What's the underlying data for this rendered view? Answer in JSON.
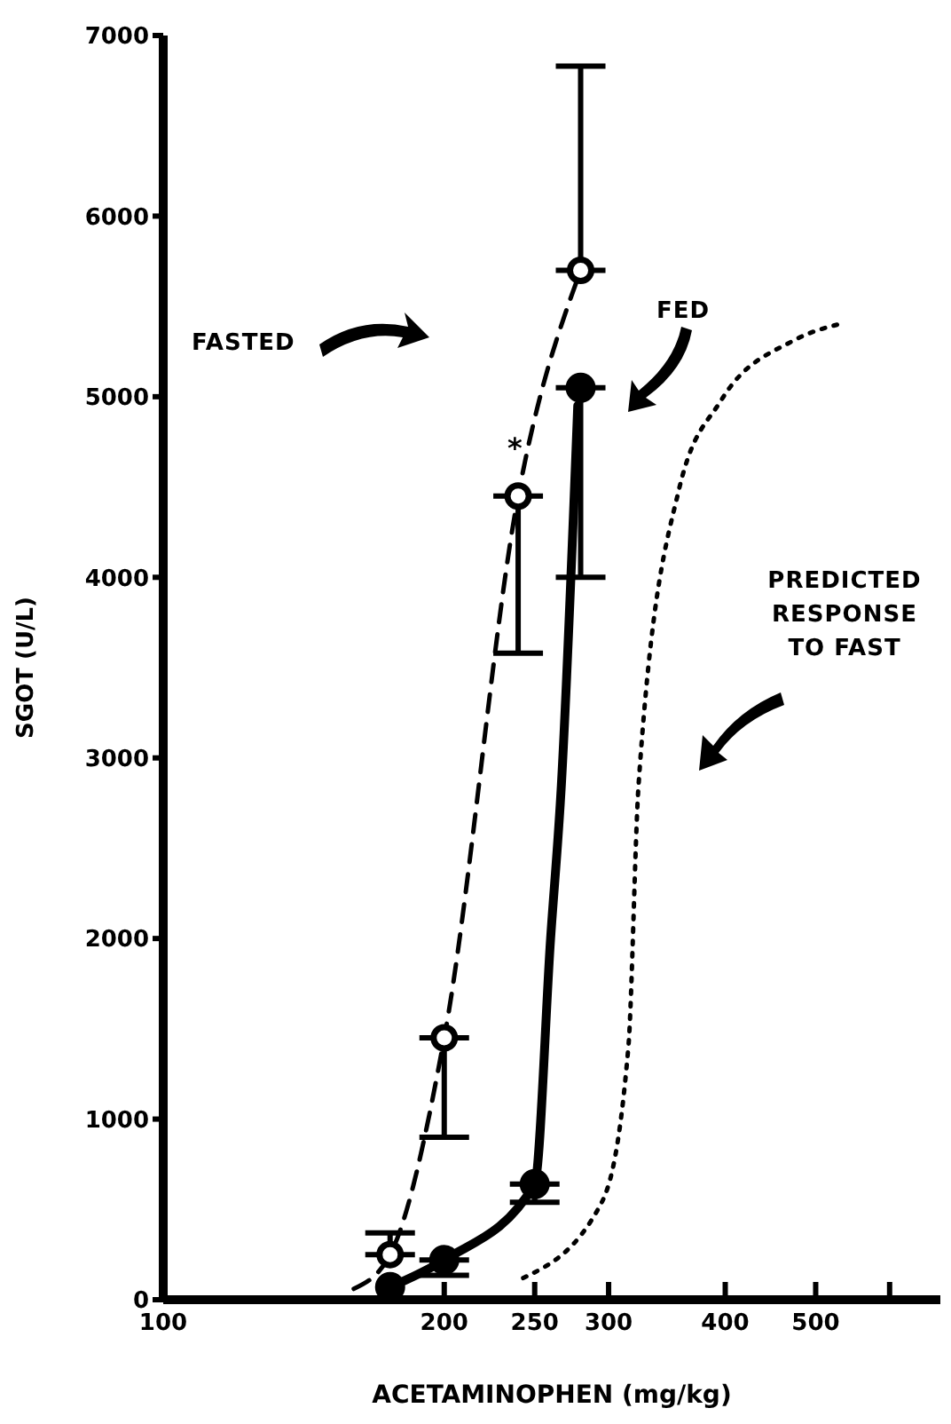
{
  "chart_data": {
    "type": "scatter",
    "xlabel": "ACETAMINOPHEN (mg/kg)",
    "ylabel": "SGOT (U/L)",
    "log": "x",
    "xlim": [
      100,
      680
    ],
    "xticks": [
      100,
      200,
      250,
      300,
      400,
      500,
      {
        "value": 600,
        "label": null
      }
    ],
    "ylim": [
      0,
      7000
    ],
    "yticks": [
      0,
      1000,
      2000,
      3000,
      4000,
      5000,
      6000,
      7000
    ],
    "series": [
      {
        "color": "#000000",
        "marker": "circle",
        "x": [
          175,
          200,
          240,
          280
        ],
        "values": [
          250,
          1450,
          4450,
          5700
        ],
        "errors": [
          [
            250,
            370
          ],
          [
            900,
            1450
          ],
          [
            3580,
            4450
          ],
          [
            5700,
            6830
          ]
        ]
      },
      {
        "color": "#000000",
        "marker": "circle",
        "x": [
          175,
          200,
          250,
          280
        ],
        "values": [
          70,
          220,
          640,
          5050
        ],
        "errors": [
          null,
          [
            135,
            220
          ],
          [
            540,
            640
          ],
          [
            4000,
            5050
          ]
        ]
      },
      {
        "type": "line",
        "color": "#000000",
        "marker": "none",
        "line_style": "dashed",
        "x": [
          160,
          175,
          200,
          240,
          280
        ],
        "values": [
          60,
          250,
          1450,
          4450,
          5700
        ]
      },
      {
        "type": "line",
        "color": "#000000",
        "marker": "none",
        "line_style": "solid",
        "x": [
          175,
          200,
          250,
          260,
          267,
          278
        ],
        "values": [
          70,
          220,
          640,
          2000,
          2850,
          4950
        ]
      },
      {
        "type": "line",
        "color": "#000000",
        "marker": "none",
        "line_style": "dotted",
        "x": [
          243,
          295,
          315,
          323,
          357,
          396,
          473,
          538
        ],
        "values": [
          120,
          540,
          1400,
          2850,
          4490,
          4980,
          5310,
          5410
        ]
      }
    ],
    "annotations": [
      "FASTED",
      "FED",
      "PREDICTED RESPONSE TO FAST",
      {
        "text": "*",
        "x": 240,
        "y": 4450
      }
    ]
  }
}
